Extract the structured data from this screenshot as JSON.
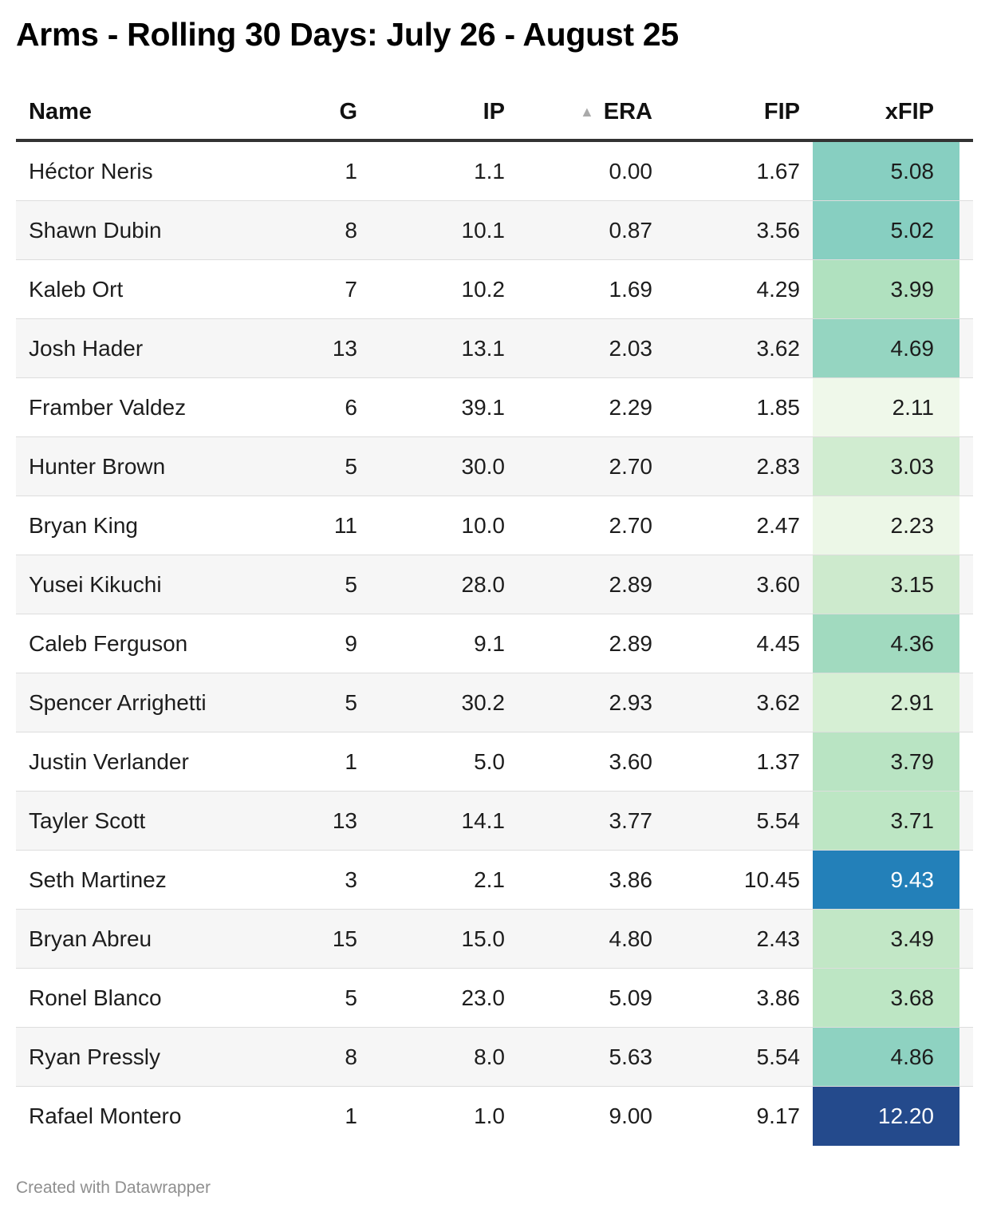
{
  "title": "Arms - Rolling 30 Days: July 26 - August 25",
  "footer": "Created with Datawrapper",
  "columns": {
    "name": "Name",
    "g": "G",
    "ip": "IP",
    "era": "ERA",
    "fip": "FIP",
    "xfip": "xFIP"
  },
  "sort": {
    "column": "ERA",
    "direction": "ascending",
    "indicator": "▲"
  },
  "chart_data": {
    "type": "table",
    "title": "Arms - Rolling 30 Days: July 26 - August 25",
    "columns": [
      "Name",
      "G",
      "IP",
      "ERA",
      "FIP",
      "xFIP"
    ],
    "color_scale_column": "xFIP",
    "rows": [
      {
        "name": "Héctor Neris",
        "g": "1",
        "ip": "1.1",
        "era": "0.00",
        "fip": "1.67",
        "xfip": "5.08",
        "xfip_bg": "#87cfc1",
        "xfip_fg": "#1d1d1d"
      },
      {
        "name": "Shawn Dubin",
        "g": "8",
        "ip": "10.1",
        "era": "0.87",
        "fip": "3.56",
        "xfip": "5.02",
        "xfip_bg": "#87cfc1",
        "xfip_fg": "#1d1d1d"
      },
      {
        "name": "Kaleb Ort",
        "g": "7",
        "ip": "10.2",
        "era": "1.69",
        "fip": "4.29",
        "xfip": "3.99",
        "xfip_bg": "#b0e1bf",
        "xfip_fg": "#1d1d1d"
      },
      {
        "name": "Josh Hader",
        "g": "13",
        "ip": "13.1",
        "era": "2.03",
        "fip": "3.62",
        "xfip": "4.69",
        "xfip_bg": "#95d5c1",
        "xfip_fg": "#1d1d1d"
      },
      {
        "name": "Framber Valdez",
        "g": "6",
        "ip": "39.1",
        "era": "2.29",
        "fip": "1.85",
        "xfip": "2.11",
        "xfip_bg": "#eff8ea",
        "xfip_fg": "#1d1d1d"
      },
      {
        "name": "Hunter Brown",
        "g": "5",
        "ip": "30.0",
        "era": "2.70",
        "fip": "2.83",
        "xfip": "3.03",
        "xfip_bg": "#d0ecd0",
        "xfip_fg": "#1d1d1d"
      },
      {
        "name": "Bryan King",
        "g": "11",
        "ip": "10.0",
        "era": "2.70",
        "fip": "2.47",
        "xfip": "2.23",
        "xfip_bg": "#ecf7e7",
        "xfip_fg": "#1d1d1d"
      },
      {
        "name": "Yusei Kikuchi",
        "g": "5",
        "ip": "28.0",
        "era": "2.89",
        "fip": "3.60",
        "xfip": "3.15",
        "xfip_bg": "#cdeacd",
        "xfip_fg": "#1d1d1d"
      },
      {
        "name": "Caleb Ferguson",
        "g": "9",
        "ip": "9.1",
        "era": "2.89",
        "fip": "4.45",
        "xfip": "4.36",
        "xfip_bg": "#a1dabf",
        "xfip_fg": "#1d1d1d"
      },
      {
        "name": "Spencer Arrighetti",
        "g": "5",
        "ip": "30.2",
        "era": "2.93",
        "fip": "3.62",
        "xfip": "2.91",
        "xfip_bg": "#d6efd4",
        "xfip_fg": "#1d1d1d"
      },
      {
        "name": "Justin Verlander",
        "g": "1",
        "ip": "5.0",
        "era": "3.60",
        "fip": "1.37",
        "xfip": "3.79",
        "xfip_bg": "#b9e4c3",
        "xfip_fg": "#1d1d1d"
      },
      {
        "name": "Tayler Scott",
        "g": "13",
        "ip": "14.1",
        "era": "3.77",
        "fip": "5.54",
        "xfip": "3.71",
        "xfip_bg": "#bde6c4",
        "xfip_fg": "#1d1d1d"
      },
      {
        "name": "Seth Martinez",
        "g": "3",
        "ip": "2.1",
        "era": "3.86",
        "fip": "10.45",
        "xfip": "9.43",
        "xfip_bg": "#2380b9",
        "xfip_fg": "#ffffff"
      },
      {
        "name": "Bryan Abreu",
        "g": "15",
        "ip": "15.0",
        "era": "4.80",
        "fip": "2.43",
        "xfip": "3.49",
        "xfip_bg": "#c2e7c6",
        "xfip_fg": "#1d1d1d"
      },
      {
        "name": "Ronel Blanco",
        "g": "5",
        "ip": "23.0",
        "era": "5.09",
        "fip": "3.86",
        "xfip": "3.68",
        "xfip_bg": "#bde6c4",
        "xfip_fg": "#1d1d1d"
      },
      {
        "name": "Ryan Pressly",
        "g": "8",
        "ip": "8.0",
        "era": "5.63",
        "fip": "5.54",
        "xfip": "4.86",
        "xfip_bg": "#8ed2c1",
        "xfip_fg": "#1d1d1d"
      },
      {
        "name": "Rafael Montero",
        "g": "1",
        "ip": "1.0",
        "era": "9.00",
        "fip": "9.17",
        "xfip": "12.20",
        "xfip_bg": "#244a8c",
        "xfip_fg": "#ffffff"
      }
    ]
  }
}
